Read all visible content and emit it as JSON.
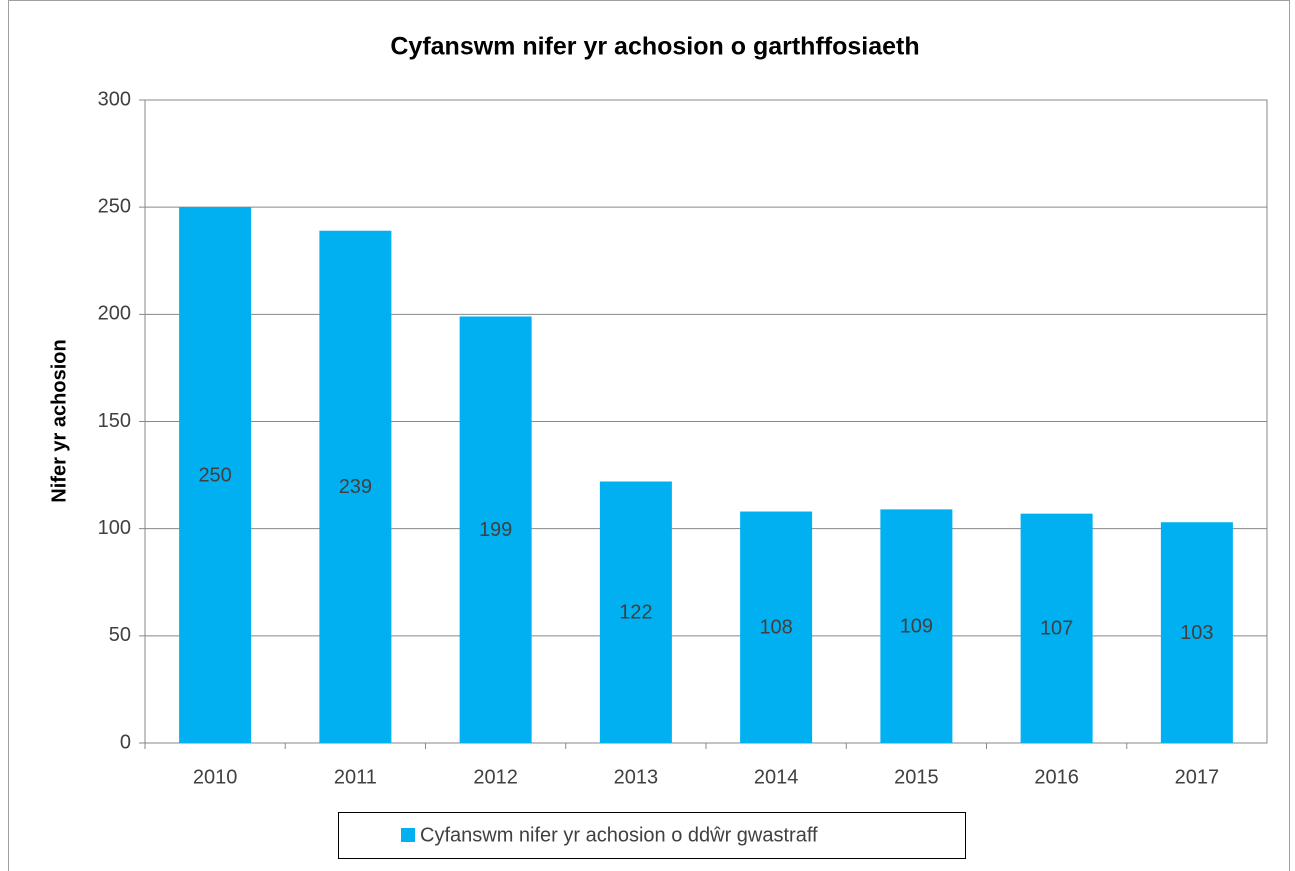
{
  "chart_data": {
    "type": "bar",
    "title": "Cyfanswm nifer yr achosion o garthffosiaeth",
    "y_label": "Nifer yr achosion",
    "categories": [
      "2010",
      "2011",
      "2012",
      "2013",
      "2014",
      "2015",
      "2016",
      "2017"
    ],
    "series": [
      {
        "name": "Cyfanswm nifer yr achosion o ddŵr gwastraff",
        "color": "#00b0f0",
        "values": [
          250,
          239,
          199,
          122,
          108,
          109,
          107,
          103
        ]
      }
    ],
    "ylim": [
      0,
      300
    ],
    "yticks": [
      0,
      50,
      100,
      150,
      200,
      250,
      300
    ],
    "grid": true,
    "legend": "bottom"
  }
}
